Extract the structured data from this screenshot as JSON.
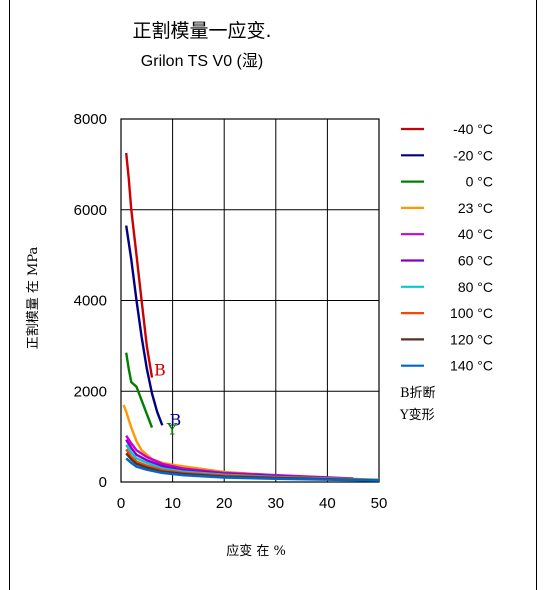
{
  "chart_data": {
    "type": "line",
    "title": "正割模量一应变.",
    "subtitle": "Grilon TS V0 (湿)",
    "xlabel": "应变 在 %",
    "ylabel": "正割模量 在 MPa",
    "xlim": [
      0,
      50
    ],
    "ylim": [
      0,
      8000
    ],
    "xticks": [
      0,
      10,
      20,
      30,
      40,
      50
    ],
    "yticks": [
      0,
      2000,
      4000,
      6000,
      8000
    ],
    "grid": true,
    "legend_position": "right",
    "series": [
      {
        "name": "-40 °C",
        "color": "#cc0000",
        "points": [
          [
            1,
            7250
          ],
          [
            1.5,
            6700
          ],
          [
            2,
            6000
          ],
          [
            3,
            5000
          ],
          [
            4,
            4000
          ],
          [
            5,
            3000
          ],
          [
            6,
            2300
          ]
        ]
      },
      {
        "name": "-20 °C",
        "color": "#000080",
        "points": [
          [
            1,
            5650
          ],
          [
            2,
            4900
          ],
          [
            3,
            4000
          ],
          [
            4,
            3200
          ],
          [
            5,
            2500
          ],
          [
            6,
            1950
          ],
          [
            7,
            1550
          ],
          [
            8,
            1250
          ]
        ]
      },
      {
        "name": "0 °C",
        "color": "#008000",
        "points": [
          [
            1,
            2850
          ],
          [
            1.5,
            2500
          ],
          [
            2,
            2200
          ],
          [
            3,
            2100
          ],
          [
            4,
            1800
          ],
          [
            5,
            1500
          ],
          [
            6,
            1200
          ]
        ]
      },
      {
        "name": "23 °C",
        "color": "#ff9900",
        "points": [
          [
            0.5,
            1700
          ],
          [
            1,
            1550
          ],
          [
            2,
            1200
          ],
          [
            3,
            900
          ],
          [
            4,
            700
          ],
          [
            6,
            500
          ],
          [
            8,
            420
          ],
          [
            10,
            380
          ],
          [
            15,
            300
          ],
          [
            20,
            220
          ],
          [
            30,
            150
          ],
          [
            40,
            90
          ],
          [
            47,
            60
          ]
        ]
      },
      {
        "name": "40 °C",
        "color": "#cc00cc",
        "points": [
          [
            1,
            1020
          ],
          [
            2,
            850
          ],
          [
            3,
            700
          ],
          [
            5,
            550
          ],
          [
            8,
            400
          ],
          [
            12,
            300
          ],
          [
            20,
            200
          ],
          [
            30,
            150
          ],
          [
            45,
            80
          ]
        ]
      },
      {
        "name": "60 °C",
        "color": "#8800cc",
        "points": [
          [
            1,
            930
          ],
          [
            2,
            750
          ],
          [
            3,
            600
          ],
          [
            5,
            480
          ],
          [
            8,
            350
          ],
          [
            12,
            260
          ],
          [
            20,
            180
          ],
          [
            30,
            130
          ],
          [
            45,
            70
          ]
        ]
      },
      {
        "name": "80 °C",
        "color": "#00cccc",
        "points": [
          [
            1,
            820
          ],
          [
            2,
            650
          ],
          [
            3,
            520
          ],
          [
            5,
            420
          ],
          [
            8,
            300
          ],
          [
            12,
            230
          ],
          [
            20,
            160
          ],
          [
            30,
            110
          ],
          [
            50,
            50
          ]
        ]
      },
      {
        "name": "100 °C",
        "color": "#ff4400",
        "points": [
          [
            1,
            720
          ],
          [
            2,
            560
          ],
          [
            3,
            450
          ],
          [
            5,
            360
          ],
          [
            8,
            260
          ],
          [
            12,
            200
          ],
          [
            20,
            140
          ],
          [
            30,
            100
          ],
          [
            50,
            40
          ]
        ]
      },
      {
        "name": "120 °C",
        "color": "#553322",
        "points": [
          [
            1,
            630
          ],
          [
            2,
            500
          ],
          [
            3,
            400
          ],
          [
            5,
            320
          ],
          [
            8,
            230
          ],
          [
            12,
            180
          ],
          [
            20,
            120
          ],
          [
            30,
            90
          ],
          [
            50,
            35
          ]
        ]
      },
      {
        "name": "140 °C",
        "color": "#0066cc",
        "points": [
          [
            1,
            520
          ],
          [
            2,
            420
          ],
          [
            3,
            340
          ],
          [
            5,
            270
          ],
          [
            8,
            200
          ],
          [
            12,
            150
          ],
          [
            20,
            100
          ],
          [
            30,
            70
          ],
          [
            50,
            30
          ]
        ]
      }
    ],
    "annotations": [
      {
        "text": "B",
        "x": 6,
        "y": 2350,
        "color": "#cc0000"
      },
      {
        "text": "B",
        "x": 9,
        "y": 1250,
        "color": "#000080"
      },
      {
        "text": "Y",
        "x": 8.5,
        "y": 1050,
        "color": "#008000"
      }
    ],
    "notes": [
      "B折断",
      "Y变形"
    ]
  }
}
